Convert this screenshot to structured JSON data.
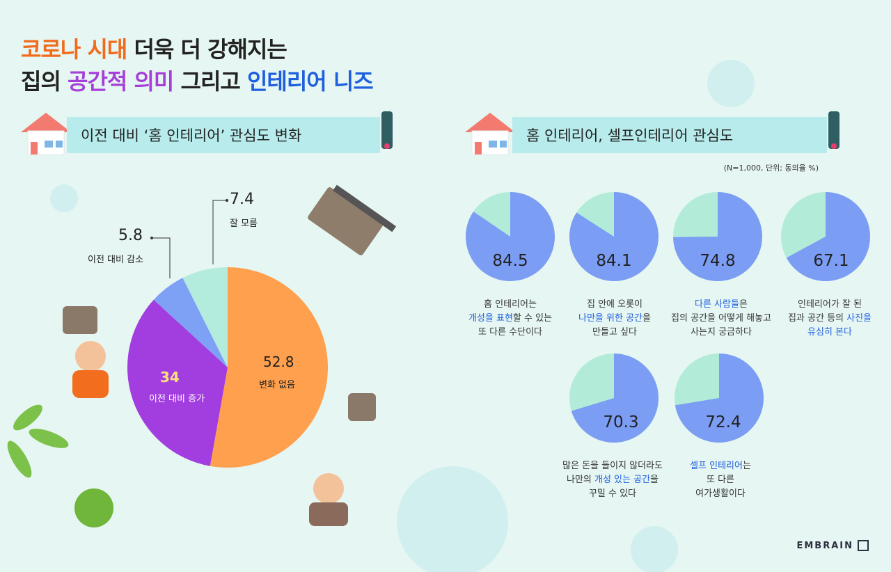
{
  "title": {
    "line1_hl": "코로나 시대",
    "line1_rest": " 더욱 더 강해지는",
    "line2_a": "집의 ",
    "line2_hl1": "공간적 의미",
    "line2_b": " 그리고 ",
    "line2_hl2": "인테리어 니즈"
  },
  "left_section": {
    "label": "이전 대비 ‘홈 인테리어’ 관심도 변화"
  },
  "right_section": {
    "label": "홈 인테리어, 셀프인테리어 관심도"
  },
  "note": "(N=1,000, 단위; 동의율 %)",
  "logo": "EMBRAIN",
  "colors": {
    "orange": "#fea04d",
    "purple": "#a23ee0",
    "blue": "#7fa1f5",
    "mint": "#b3ecdc",
    "pie_blue": "#7c9df4",
    "pie_mint": "#b2ecd9"
  },
  "chart_data": [
    {
      "type": "pie",
      "unit": "%",
      "slices": [
        {
          "label": "변화 없음",
          "value": 52.8,
          "color": "#fea04d"
        },
        {
          "label": "이전 대비 증가",
          "value": 34.0,
          "color": "#a23ee0"
        },
        {
          "label": "이전 대비 감소",
          "value": 5.8,
          "color": "#7fa1f5"
        },
        {
          "label": "잘 모름",
          "value": 7.4,
          "color": "#b3ecdc"
        }
      ]
    },
    {
      "type": "pie",
      "unit": "%",
      "items": [
        {
          "value": 84.5,
          "caption": [
            "홈 인테리어는",
            "개성을 표현할 수 있는",
            "또 다른 수단이다"
          ]
        },
        {
          "value": 84.1,
          "caption": [
            "집 안에 오롯이",
            "나만을 위한 공간을",
            "만들고 싶다"
          ]
        },
        {
          "value": 74.8,
          "caption": [
            "다른 사람들은",
            "집의 공간을 어떻게 해놓고",
            "사는지 궁금하다"
          ]
        },
        {
          "value": 67.1,
          "caption": [
            "인테리어가 잘 된",
            "집과 공간 등의 사진을",
            "유심히 본다"
          ]
        },
        {
          "value": 70.3,
          "caption": [
            "많은 돈을 들이지 않더라도",
            "나만의 개성 있는 공간을",
            "꾸밀 수 있다"
          ]
        },
        {
          "value": 72.4,
          "caption": [
            "셀프 인테리어는",
            "또 다른",
            "여가생활이다"
          ]
        }
      ]
    }
  ]
}
